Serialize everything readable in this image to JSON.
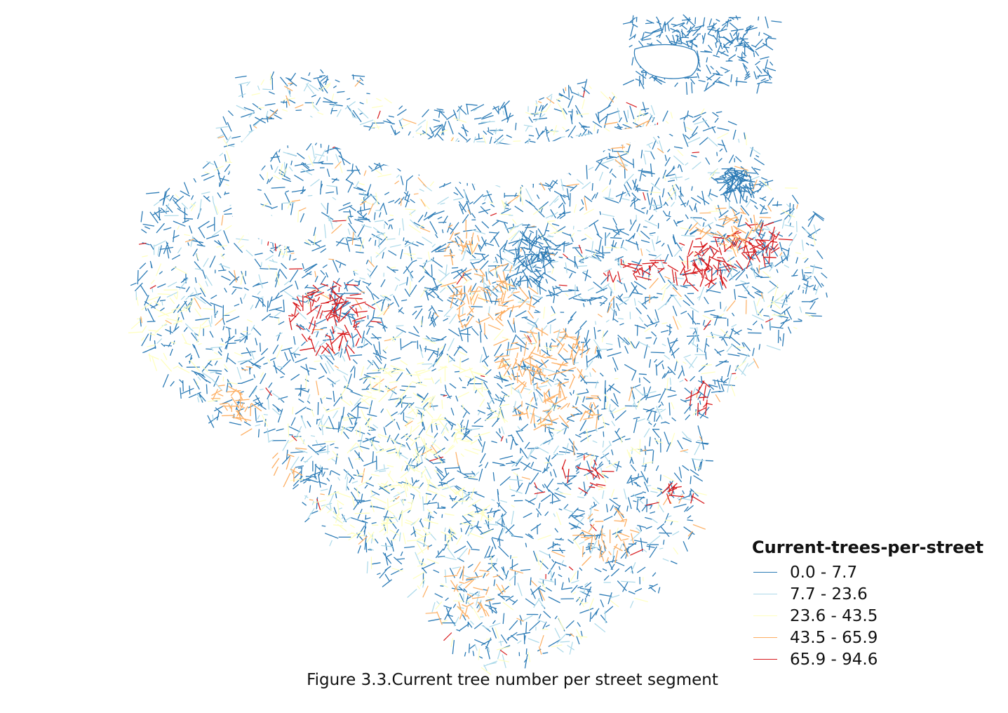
{
  "map": {
    "legend": {
      "title": "Current-trees-per-street",
      "classes": [
        {
          "label": "0.0 - 7.7",
          "color": "#2c7bb6",
          "min": 0.0,
          "max": 7.7
        },
        {
          "label": "7.7 - 23.6",
          "color": "#abd9e9",
          "min": 7.7,
          "max": 23.6
        },
        {
          "label": "23.6 - 43.5",
          "color": "#ffffbf",
          "min": 23.6,
          "max": 43.5
        },
        {
          "label": "43.5 - 65.9",
          "color": "#fdae61",
          "min": 43.5,
          "max": 65.9
        },
        {
          "label": "65.9 - 94.6",
          "color": "#d7191c",
          "min": 65.9,
          "max": 94.6
        }
      ]
    },
    "caption": "Figure 3.3.Current tree number per street segment",
    "river_color": "#ffffff"
  }
}
